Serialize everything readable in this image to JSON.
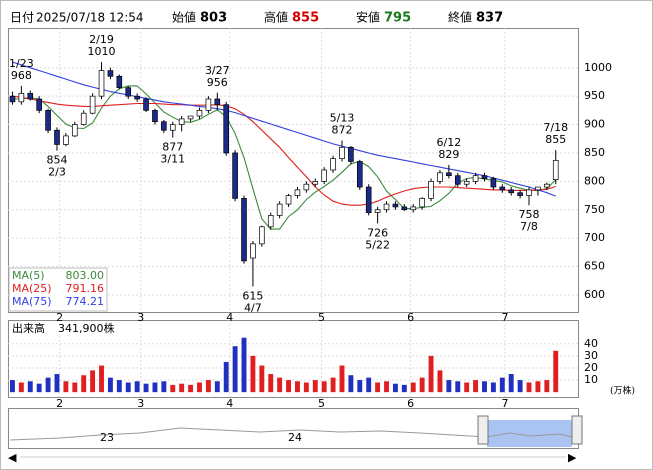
{
  "chart_data": {
    "type": "candlestick",
    "header": {
      "date_label": "日付",
      "date": "2025/07/18 12:54",
      "fields": [
        {
          "label": "始値",
          "value": 803,
          "color": "#000000"
        },
        {
          "label": "高値",
          "value": 855,
          "color": "#d40000"
        },
        {
          "label": "安値",
          "value": 795,
          "color": "#1a7a1a"
        },
        {
          "label": "終値",
          "value": 837,
          "color": "#000000"
        }
      ]
    },
    "x": [
      0,
      1,
      2,
      3,
      4,
      5,
      6,
      7,
      8,
      9,
      10,
      11,
      12,
      13,
      14,
      15,
      16,
      17,
      18,
      19,
      20,
      21,
      22,
      23,
      24,
      25,
      26,
      27,
      28,
      29,
      30,
      31,
      32,
      33,
      34,
      35,
      36,
      37,
      38,
      39,
      40,
      41,
      42,
      43,
      44,
      45,
      46,
      47,
      48,
      49,
      50,
      51,
      52,
      53,
      54,
      55,
      56,
      57,
      58,
      59,
      60,
      61
    ],
    "xlim": [
      -0.5,
      63.5
    ],
    "xticks": [
      {
        "value": 5.3,
        "label": "2"
      },
      {
        "value": 14.4,
        "label": "3"
      },
      {
        "value": 24.4,
        "label": "4"
      },
      {
        "value": 34.7,
        "label": "5"
      },
      {
        "value": 44.7,
        "label": "6"
      },
      {
        "value": 55.3,
        "label": "7"
      }
    ],
    "open": [
      950,
      940,
      955,
      945,
      925,
      890,
      865,
      880,
      900,
      920,
      950,
      995,
      985,
      965,
      950,
      945,
      925,
      905,
      890,
      900,
      910,
      915,
      925,
      945,
      935,
      850,
      770,
      665,
      690,
      720,
      740,
      760,
      775,
      785,
      795,
      800,
      820,
      840,
      860,
      835,
      790,
      745,
      750,
      760,
      755,
      750,
      755,
      770,
      800,
      815,
      810,
      795,
      800,
      810,
      805,
      790,
      785,
      780,
      775,
      785,
      790,
      803
    ],
    "high": [
      958,
      968,
      960,
      950,
      928,
      895,
      885,
      905,
      925,
      955,
      1010,
      1000,
      988,
      968,
      955,
      948,
      928,
      908,
      905,
      915,
      915,
      930,
      950,
      956,
      940,
      855,
      775,
      695,
      722,
      745,
      765,
      778,
      790,
      800,
      805,
      825,
      845,
      872,
      862,
      838,
      795,
      755,
      765,
      765,
      760,
      760,
      772,
      805,
      820,
      829,
      815,
      805,
      815,
      815,
      808,
      795,
      790,
      785,
      790,
      790,
      798,
      855
    ],
    "low": [
      935,
      935,
      942,
      920,
      885,
      854,
      862,
      878,
      898,
      918,
      945,
      980,
      962,
      945,
      940,
      922,
      900,
      885,
      877,
      888,
      905,
      910,
      920,
      925,
      845,
      765,
      655,
      615,
      685,
      715,
      735,
      755,
      770,
      780,
      790,
      795,
      815,
      835,
      830,
      785,
      740,
      726,
      745,
      750,
      748,
      745,
      750,
      765,
      795,
      805,
      790,
      790,
      795,
      800,
      785,
      780,
      775,
      770,
      758,
      775,
      785,
      795
    ],
    "close": [
      940,
      955,
      945,
      925,
      890,
      865,
      880,
      900,
      920,
      950,
      995,
      985,
      965,
      950,
      945,
      925,
      905,
      890,
      900,
      910,
      915,
      925,
      945,
      935,
      850,
      770,
      660,
      690,
      720,
      740,
      760,
      775,
      785,
      795,
      800,
      820,
      840,
      860,
      835,
      790,
      745,
      750,
      760,
      755,
      750,
      755,
      770,
      800,
      815,
      810,
      795,
      800,
      810,
      805,
      790,
      785,
      780,
      775,
      785,
      790,
      795,
      837
    ],
    "up_color": "#ffffff",
    "down_color": "#1c2a8a",
    "ylim": [
      570,
      1070
    ],
    "yticks": [
      600,
      650,
      700,
      750,
      800,
      850,
      900,
      950,
      1000
    ],
    "grid": true,
    "series": [
      {
        "name": "MA(5)",
        "last": "803.00",
        "color": "#3a8a3a",
        "values": [
          945,
          945,
          947,
          945,
          932,
          916,
          901,
          894,
          893,
          903,
          929,
          950,
          963,
          968,
          968,
          954,
          938,
          922,
          913,
          905,
          904,
          909,
          918,
          926,
          914,
          884,
          842,
          787,
          734,
          716,
          716,
          738,
          750,
          768,
          781,
          791,
          802,
          816,
          831,
          835,
          826,
          808,
          783,
          768,
          752,
          752,
          754,
          756,
          766,
          779,
          797,
          805,
          807,
          804,
          802,
          799,
          792,
          788,
          784,
          784,
          787,
          803
        ]
      },
      {
        "name": "MA(25)",
        "last": "791.16",
        "color": "#e02020",
        "values": [
          950,
          948,
          945,
          942,
          939,
          936,
          934,
          933,
          932,
          932,
          933,
          934,
          935,
          936,
          937,
          937,
          937,
          936,
          935,
          935,
          934,
          934,
          934,
          935,
          933,
          928,
          918,
          905,
          890,
          875,
          860,
          842,
          825,
          808,
          790,
          776,
          765,
          760,
          758,
          758,
          760,
          765,
          772,
          778,
          783,
          787,
          789,
          790,
          790,
          790,
          789,
          788,
          787,
          786,
          785,
          785,
          784,
          784,
          784,
          785,
          786,
          791
        ]
      },
      {
        "name": "MA(75)",
        "last": "774.21",
        "color": "#3040e0",
        "values": [
          1010,
          1005,
          1000,
          995,
          990,
          985,
          980,
          975,
          970,
          966,
          962,
          958,
          955,
          952,
          949,
          946,
          943,
          940,
          938,
          936,
          934,
          932,
          930,
          928,
          925,
          921,
          916,
          911,
          906,
          901,
          896,
          891,
          886,
          881,
          876,
          871,
          866,
          862,
          858,
          854,
          850,
          846,
          843,
          840,
          837,
          834,
          831,
          828,
          825,
          822,
          819,
          816,
          813,
          810,
          806,
          802,
          798,
          794,
          790,
          785,
          780,
          774
        ]
      }
    ],
    "annotations": [
      {
        "date": "1/23",
        "value": 968,
        "x": 1
      },
      {
        "date": "2/3",
        "value": 854,
        "x": 5
      },
      {
        "date": "2/19",
        "value": 1010,
        "x": 10
      },
      {
        "date": "3/11",
        "value": 877,
        "x": 18
      },
      {
        "date": "3/27",
        "value": 956,
        "x": 23
      },
      {
        "date": "4/7",
        "value": 615,
        "x": 27
      },
      {
        "date": "5/13",
        "value": 872,
        "x": 37
      },
      {
        "date": "5/22",
        "value": 726,
        "x": 41
      },
      {
        "date": "6/12",
        "value": 829,
        "x": 49
      },
      {
        "date": "7/8",
        "value": 758,
        "x": 58
      },
      {
        "date": "7/18",
        "value": 855,
        "x": 61
      }
    ],
    "volume": {
      "label": "出来高",
      "last": "341,900株",
      "unit": "(万株)",
      "values": [
        10,
        8,
        9,
        7,
        12,
        15,
        9,
        8,
        14,
        18,
        22,
        12,
        10,
        8,
        9,
        7,
        8,
        9,
        6,
        7,
        6,
        8,
        10,
        9,
        25,
        38,
        45,
        30,
        22,
        15,
        12,
        10,
        9,
        8,
        10,
        9,
        12,
        22,
        14,
        10,
        12,
        8,
        9,
        7,
        6,
        8,
        12,
        30,
        18,
        10,
        9,
        8,
        10,
        9,
        8,
        12,
        15,
        10,
        8,
        9,
        10,
        34.19
      ],
      "up_color": "#e02020",
      "down_color": "#2030c0",
      "ylim": [
        -4,
        58
      ],
      "yticks": [
        10,
        20,
        30,
        40
      ]
    },
    "navigator": {
      "labels": [
        "23",
        "24"
      ]
    }
  }
}
